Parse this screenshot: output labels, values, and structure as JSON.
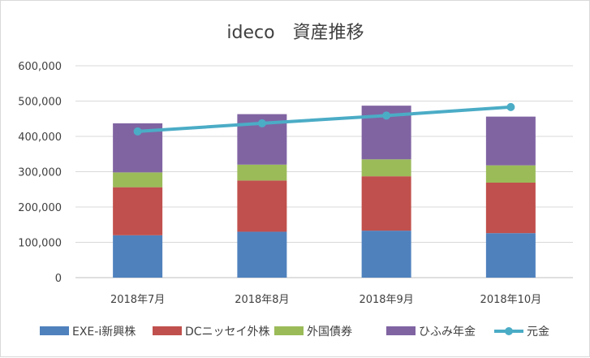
{
  "chart_data": {
    "type": "bar",
    "stacked": true,
    "title": "ideco　資産推移",
    "xlabel": "",
    "ylabel": "",
    "categories": [
      "2018年7月",
      "2018年8月",
      "2018年9月",
      "2018年10月"
    ],
    "ylim": [
      0,
      600000
    ],
    "yticks": [
      0,
      100000,
      200000,
      300000,
      400000,
      500000,
      600000
    ],
    "ytick_labels": [
      "0",
      "100,000",
      "200,000",
      "300,000",
      "400,000",
      "500,000",
      "600,000"
    ],
    "grid": true,
    "legend_position": "bottom",
    "series": [
      {
        "name": "EXE-i新興株",
        "type": "bar",
        "color": "#4f81bd",
        "values": [
          120000,
          130000,
          133000,
          126000
        ]
      },
      {
        "name": "DCニッセイ外株",
        "type": "bar",
        "color": "#c0504d",
        "values": [
          136000,
          145000,
          154000,
          143000
        ]
      },
      {
        "name": "外国債券",
        "type": "bar",
        "color": "#9bbb59",
        "values": [
          42000,
          45000,
          48000,
          49000
        ]
      },
      {
        "name": "ひふみ年金",
        "type": "bar",
        "color": "#8064a2",
        "values": [
          139000,
          143000,
          152000,
          138000
        ]
      },
      {
        "name": "元金",
        "type": "line",
        "color": "#4bacc6",
        "values": [
          414000,
          437000,
          459000,
          483000
        ]
      }
    ]
  }
}
